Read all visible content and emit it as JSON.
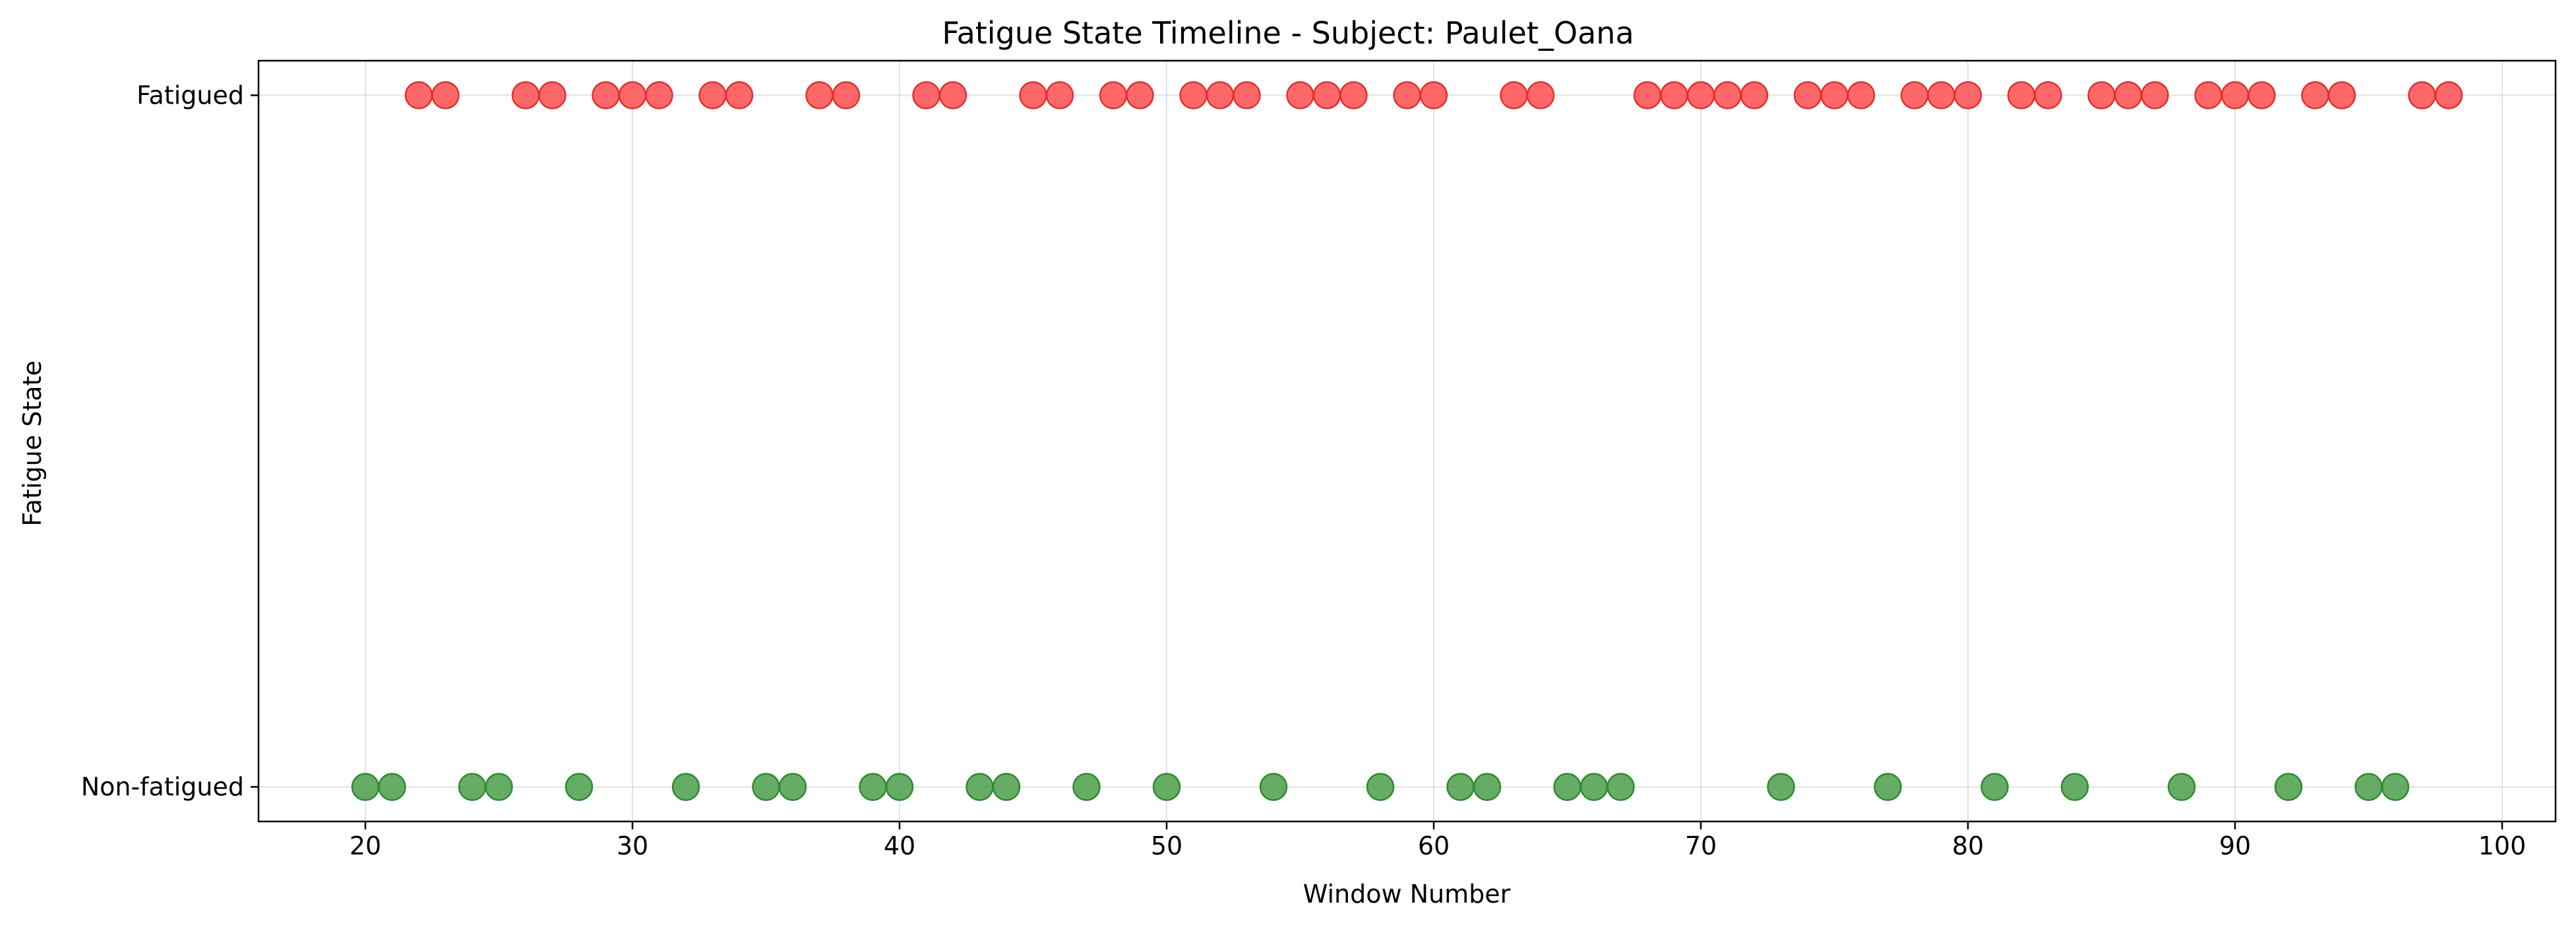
{
  "chart_data": {
    "type": "scatter",
    "title": "Fatigue State Timeline - Subject: Paulet_Oana",
    "xlabel": "Window Number",
    "ylabel": "Fatigue State",
    "xlim": [
      16,
      102
    ],
    "ylim": [
      -0.05,
      1.05
    ],
    "x_ticks": [
      20,
      30,
      40,
      50,
      60,
      70,
      80,
      90,
      100
    ],
    "y_ticks": [
      {
        "value": 0,
        "label": "Non-fatigued"
      },
      {
        "value": 1,
        "label": "Fatigued"
      }
    ],
    "grid": true,
    "series": [
      {
        "state": 1,
        "color": "#ff4d4d",
        "edge_color": "#e03030",
        "x": [
          22,
          23,
          26,
          27,
          29,
          30,
          31,
          33,
          34,
          37,
          38,
          41,
          42,
          45,
          46,
          48,
          49,
          51,
          52,
          53,
          55,
          56,
          57,
          59,
          60,
          63,
          64,
          68,
          69,
          70,
          71,
          72,
          74,
          75,
          76,
          78,
          79,
          80,
          82,
          83,
          85,
          86,
          87,
          89,
          90,
          91,
          93,
          94,
          97,
          98
        ]
      },
      {
        "state": 0,
        "color": "#4a9e4a",
        "edge_color": "#2f8a2f",
        "x": [
          20,
          21,
          24,
          25,
          28,
          32,
          35,
          36,
          39,
          40,
          43,
          44,
          47,
          50,
          54,
          58,
          61,
          62,
          65,
          66,
          67,
          73,
          77,
          81,
          84,
          88,
          92,
          95,
          96
        ]
      }
    ]
  }
}
